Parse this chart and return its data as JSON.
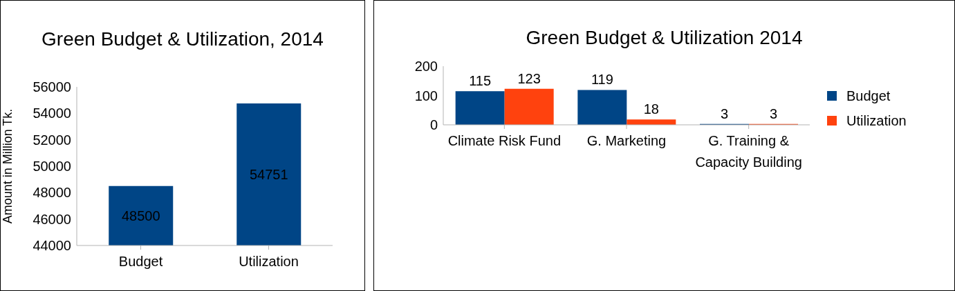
{
  "chart_data": [
    {
      "type": "bar",
      "title": "Green Budget & Utilization, 2014",
      "ylabel": "Amount in Million Tk.",
      "categories": [
        "Budget",
        "Utilization"
      ],
      "values": [
        48500,
        54751
      ],
      "color": "#004586",
      "ylim": [
        44000,
        56000
      ],
      "yticks": [
        44000,
        46000,
        48000,
        50000,
        52000,
        54000,
        56000
      ],
      "data_labels": true
    },
    {
      "type": "bar",
      "title": "Green Budget & Utilization 2014",
      "categories": [
        "Climate Risk Fund",
        "G. Marketing",
        "G. Training & Capacity Building"
      ],
      "series": [
        {
          "name": "Budget",
          "color": "#004586",
          "values": [
            115,
            119,
            3
          ]
        },
        {
          "name": "Utilization",
          "color": "#ff420e",
          "values": [
            123,
            18,
            3
          ]
        }
      ],
      "ylim": [
        0,
        200
      ],
      "yticks": [
        0,
        100,
        200
      ],
      "legend": "right",
      "data_labels": true
    }
  ]
}
